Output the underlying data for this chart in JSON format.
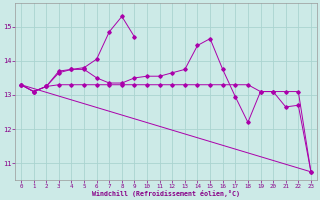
{
  "bg_color": "#cceae7",
  "line_color": "#aa00aa",
  "grid_color": "#aad4d0",
  "xlabel": "Windchill (Refroidissement éolien,°C)",
  "xlim": [
    -0.5,
    23.5
  ],
  "ylim": [
    10.5,
    15.7
  ],
  "yticks": [
    11,
    12,
    13,
    14,
    15
  ],
  "xticks": [
    0,
    1,
    2,
    3,
    4,
    5,
    6,
    7,
    8,
    9,
    10,
    11,
    12,
    13,
    14,
    15,
    16,
    17,
    18,
    19,
    20,
    21,
    22,
    23
  ],
  "line1_x": [
    0,
    1,
    2,
    3,
    4,
    5,
    6,
    7,
    8,
    9
  ],
  "line1_y": [
    13.3,
    13.1,
    13.25,
    13.7,
    13.75,
    13.8,
    14.05,
    14.85,
    15.3,
    14.7
  ],
  "line2_x": [
    0,
    1,
    2,
    3,
    4,
    5,
    6,
    7,
    8,
    9,
    10,
    11,
    12,
    13,
    14,
    15,
    16,
    17,
    18,
    19,
    20,
    21,
    22,
    23
  ],
  "line2_y": [
    13.3,
    13.1,
    13.25,
    13.65,
    13.75,
    13.75,
    13.5,
    13.35,
    13.35,
    13.5,
    13.55,
    13.55,
    13.65,
    13.75,
    14.45,
    14.65,
    13.75,
    12.95,
    12.2,
    13.1,
    13.1,
    12.65,
    12.7,
    10.75
  ],
  "line3_x": [
    0,
    1,
    2,
    3,
    4,
    5,
    6,
    7,
    8,
    9,
    10,
    11,
    12,
    13,
    14,
    15,
    16,
    17,
    18,
    19,
    20,
    21,
    22,
    23
  ],
  "line3_y": [
    13.3,
    13.1,
    13.25,
    13.3,
    13.3,
    13.3,
    13.3,
    13.3,
    13.3,
    13.3,
    13.3,
    13.3,
    13.3,
    13.3,
    13.3,
    13.3,
    13.3,
    13.3,
    13.3,
    13.1,
    13.1,
    13.1,
    13.1,
    10.75
  ],
  "line4_x": [
    0,
    23
  ],
  "line4_y": [
    13.3,
    10.75
  ]
}
